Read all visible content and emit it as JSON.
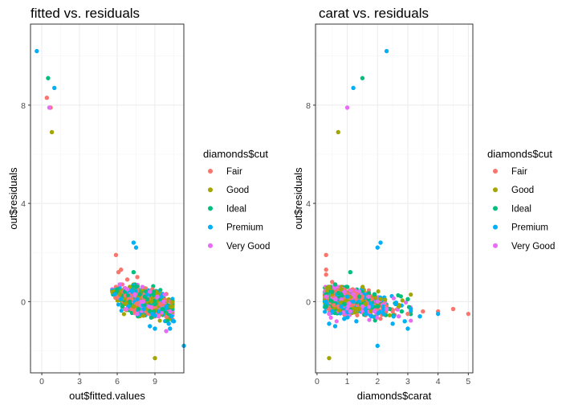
{
  "colors": {
    "Fair": "#F8766D",
    "Good": "#A3A500",
    "Ideal": "#00BF7D",
    "Premium": "#00B0F6",
    "Very Good": "#E76BF3"
  },
  "legend": {
    "title": "diamonds$cut",
    "entries": [
      "Fair",
      "Good",
      "Ideal",
      "Premium",
      "Very Good"
    ]
  },
  "chart_data": [
    {
      "type": "scatter",
      "title": "fitted vs. residuals",
      "xlabel": "out$fitted.values",
      "ylabel": "out$residuals",
      "xlim": [
        -0.9,
        11.3
      ],
      "ylim": [
        -2.9,
        11.3
      ],
      "xticks": [
        0,
        3,
        6,
        9
      ],
      "yticks": [
        0,
        4,
        8
      ],
      "grid": true,
      "legend": "right",
      "cluster": {
        "x_range": [
          5.6,
          10.4
        ],
        "y_range": [
          -0.9,
          0.7
        ],
        "center": [
          8.2,
          0.0
        ]
      },
      "series": [
        {
          "name": "Fair",
          "points": [
            [
              0.4,
              8.3
            ],
            [
              0.7,
              7.9
            ],
            [
              5.9,
              1.9
            ],
            [
              6.3,
              1.3
            ],
            [
              6.1,
              1.2
            ],
            [
              6.8,
              0.9
            ],
            [
              7.6,
              1.0
            ],
            [
              5.9,
              0.6
            ],
            [
              6.5,
              0.4
            ],
            [
              7.2,
              0.3
            ],
            [
              7.9,
              0.2
            ],
            [
              8.5,
              0.1
            ],
            [
              6.4,
              -0.2
            ],
            [
              7.1,
              -0.3
            ],
            [
              8.3,
              -0.4
            ],
            [
              9.0,
              -0.2
            ],
            [
              6.9,
              0.1
            ],
            [
              7.5,
              -0.1
            ],
            [
              8.8,
              0.5
            ],
            [
              9.4,
              -0.1
            ]
          ]
        },
        {
          "name": "Good",
          "points": [
            [
              0.8,
              6.9
            ],
            [
              9.0,
              -2.3
            ],
            [
              6.2,
              0.3
            ],
            [
              7.0,
              0.6
            ],
            [
              7.7,
              0.2
            ],
            [
              8.4,
              -0.3
            ],
            [
              9.1,
              0.4
            ],
            [
              6.6,
              -0.1
            ],
            [
              8.0,
              0.5
            ],
            [
              9.6,
              -0.3
            ],
            [
              8.7,
              0.0
            ],
            [
              7.3,
              -0.2
            ]
          ]
        },
        {
          "name": "Ideal",
          "points": [
            [
              0.5,
              9.1
            ],
            [
              6.0,
              0.5
            ],
            [
              6.6,
              0.4
            ],
            [
              7.3,
              1.2
            ],
            [
              7.8,
              0.3
            ],
            [
              8.4,
              0.1
            ],
            [
              9.0,
              -0.1
            ],
            [
              9.6,
              -0.3
            ],
            [
              10.1,
              -0.5
            ],
            [
              6.4,
              -0.2
            ],
            [
              7.0,
              0.0
            ],
            [
              7.7,
              -0.3
            ],
            [
              8.2,
              0.2
            ],
            [
              8.9,
              0.4
            ],
            [
              9.4,
              0.1
            ],
            [
              10.0,
              -0.8
            ],
            [
              7.5,
              0.6
            ],
            [
              8.6,
              -0.4
            ]
          ]
        },
        {
          "name": "Premium",
          "points": [
            [
              -0.4,
              10.2
            ],
            [
              1.0,
              8.7
            ],
            [
              7.3,
              2.4
            ],
            [
              7.5,
              2.2
            ],
            [
              11.3,
              -1.8
            ],
            [
              10.2,
              -1.1
            ],
            [
              10.5,
              -0.8
            ],
            [
              9.0,
              -1.1
            ],
            [
              8.6,
              -1.0
            ],
            [
              5.8,
              0.3
            ],
            [
              6.3,
              0.1
            ],
            [
              6.9,
              -0.2
            ],
            [
              7.6,
              0.1
            ],
            [
              8.1,
              -0.3
            ],
            [
              8.8,
              -0.5
            ],
            [
              9.3,
              -0.4
            ],
            [
              9.9,
              -0.2
            ],
            [
              10.3,
              -0.6
            ],
            [
              7.2,
              0.4
            ],
            [
              8.4,
              0.3
            ],
            [
              9.5,
              0.2
            ],
            [
              10.1,
              -0.9
            ]
          ]
        },
        {
          "name": "Very Good",
          "points": [
            [
              0.6,
              7.9
            ],
            [
              6.2,
              0.7
            ],
            [
              6.8,
              0.5
            ],
            [
              7.4,
              0.3
            ],
            [
              8.0,
              0.6
            ],
            [
              8.6,
              0.4
            ],
            [
              9.2,
              0.2
            ],
            [
              9.7,
              0.0
            ],
            [
              10.2,
              -0.4
            ],
            [
              6.7,
              -0.3
            ],
            [
              7.6,
              -0.5
            ],
            [
              8.5,
              -0.2
            ],
            [
              9.3,
              -0.6
            ],
            [
              9.9,
              -1.2
            ],
            [
              7.9,
              0.0
            ]
          ]
        }
      ]
    },
    {
      "type": "scatter",
      "title": "carat vs. residuals",
      "xlabel": "diamonds$carat",
      "ylabel": "out$residuals",
      "xlim": [
        -0.05,
        5.15
      ],
      "ylim": [
        -2.9,
        11.3
      ],
      "xticks": [
        0,
        1,
        2,
        3,
        4,
        5
      ],
      "yticks": [
        0,
        4,
        8
      ],
      "grid": true,
      "legend": "right",
      "cluster": {
        "x_range": [
          0.2,
          3.1
        ],
        "y_range": [
          -0.8,
          0.6
        ],
        "center": [
          1.1,
          0.0
        ]
      },
      "series": [
        {
          "name": "Fair",
          "points": [
            [
              0.3,
              1.9
            ],
            [
              0.3,
              1.3
            ],
            [
              0.3,
              1.1
            ],
            [
              0.5,
              0.8
            ],
            [
              0.9,
              0.5
            ],
            [
              1.0,
              0.3
            ],
            [
              1.2,
              -0.1
            ],
            [
              1.5,
              0.2
            ],
            [
              2.0,
              -0.3
            ],
            [
              2.5,
              -0.4
            ],
            [
              3.0,
              -0.5
            ],
            [
              3.5,
              -0.4
            ],
            [
              4.0,
              -0.4
            ],
            [
              4.5,
              -0.3
            ],
            [
              5.0,
              -0.5
            ],
            [
              0.7,
              -0.2
            ],
            [
              1.8,
              0.1
            ],
            [
              2.3,
              -0.2
            ]
          ]
        },
        {
          "name": "Good",
          "points": [
            [
              0.4,
              -2.3
            ],
            [
              0.7,
              6.9
            ],
            [
              0.5,
              0.3
            ],
            [
              0.8,
              0.5
            ],
            [
              1.1,
              0.2
            ],
            [
              1.6,
              -0.1
            ],
            [
              2.1,
              0.1
            ],
            [
              2.7,
              -0.2
            ],
            [
              1.3,
              -0.3
            ],
            [
              0.4,
              0.6
            ]
          ]
        },
        {
          "name": "Ideal",
          "points": [
            [
              1.5,
              9.1
            ],
            [
              0.5,
              0.4
            ],
            [
              0.6,
              0.7
            ],
            [
              0.8,
              0.3
            ],
            [
              1.0,
              0.6
            ],
            [
              1.1,
              1.2
            ],
            [
              1.4,
              0.2
            ],
            [
              1.7,
              0.1
            ],
            [
              2.0,
              -0.2
            ],
            [
              2.4,
              -0.3
            ],
            [
              2.8,
              -0.4
            ],
            [
              3.0,
              0.1
            ],
            [
              0.3,
              -0.2
            ],
            [
              0.9,
              -0.1
            ],
            [
              1.9,
              0.3
            ]
          ]
        },
        {
          "name": "Premium",
          "points": [
            [
              2.3,
              10.2
            ],
            [
              1.2,
              8.7
            ],
            [
              2.1,
              2.4
            ],
            [
              2.0,
              2.2
            ],
            [
              2.0,
              -1.8
            ],
            [
              0.6,
              -1.0
            ],
            [
              0.4,
              -0.9
            ],
            [
              0.9,
              -0.7
            ],
            [
              1.3,
              -0.8
            ],
            [
              1.8,
              -0.6
            ],
            [
              2.5,
              -0.9
            ],
            [
              2.9,
              -0.8
            ],
            [
              3.0,
              -1.1
            ],
            [
              0.5,
              -0.4
            ],
            [
              0.8,
              -0.2
            ],
            [
              1.2,
              0.0
            ],
            [
              1.6,
              -0.3
            ],
            [
              2.2,
              -0.5
            ],
            [
              2.6,
              -0.1
            ],
            [
              3.1,
              -0.3
            ],
            [
              3.4,
              -0.6
            ],
            [
              4.0,
              -0.5
            ],
            [
              1.0,
              0.2
            ]
          ]
        },
        {
          "name": "Very Good",
          "points": [
            [
              1.0,
              7.9
            ],
            [
              0.3,
              0.2
            ],
            [
              0.6,
              0.1
            ],
            [
              0.9,
              0.4
            ],
            [
              1.2,
              0.3
            ],
            [
              1.5,
              -0.2
            ],
            [
              1.9,
              -0.4
            ],
            [
              2.3,
              -0.3
            ],
            [
              2.7,
              -0.6
            ],
            [
              0.4,
              -0.5
            ],
            [
              1.1,
              -0.4
            ],
            [
              1.7,
              0.2
            ],
            [
              2.0,
              0.0
            ]
          ]
        }
      ]
    }
  ]
}
